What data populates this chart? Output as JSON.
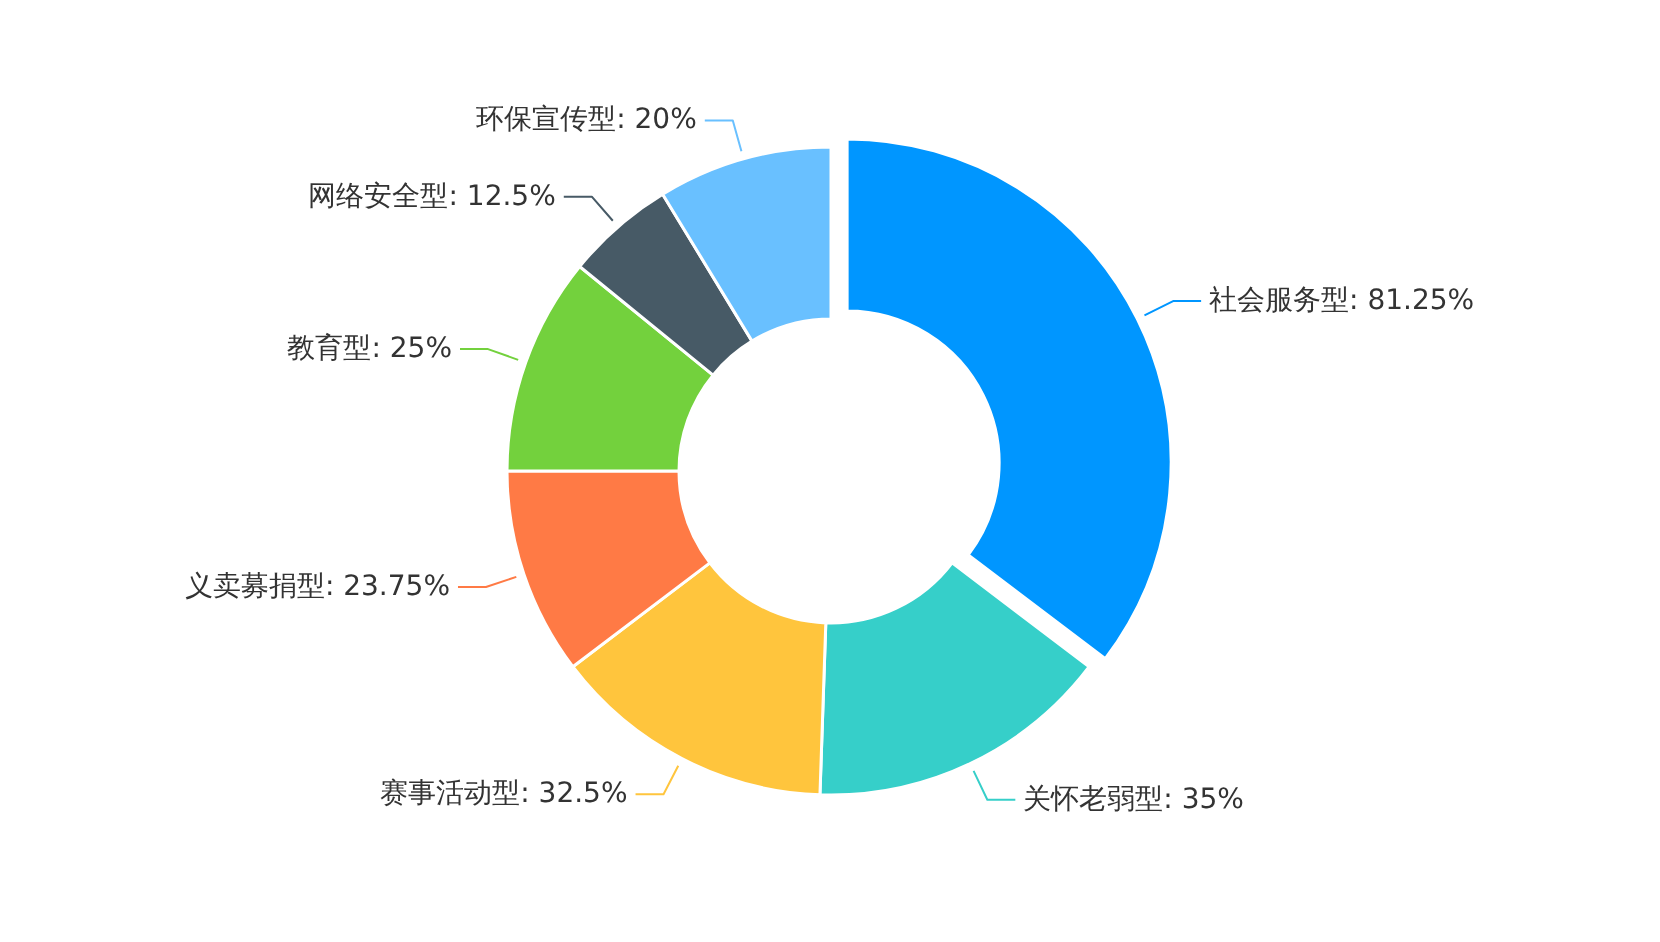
{
  "chart_data": {
    "type": "donut",
    "categories": [
      "社会服务型",
      "关怀老弱型",
      "赛事活动型",
      "义卖募捐型",
      "教育型",
      "网络安全型",
      "环保宣传型"
    ],
    "values": [
      81.25,
      35,
      32.5,
      23.75,
      25,
      12.5,
      20
    ],
    "value_labels": [
      "81.25%",
      "35%",
      "32.5%",
      "23.75%",
      "25%",
      "12.5%",
      "20%"
    ],
    "colors": [
      "#0096ff",
      "#36cfc9",
      "#ffc53d",
      "#ff7a45",
      "#73d13d",
      "#475a66",
      "#69c0ff"
    ]
  }
}
